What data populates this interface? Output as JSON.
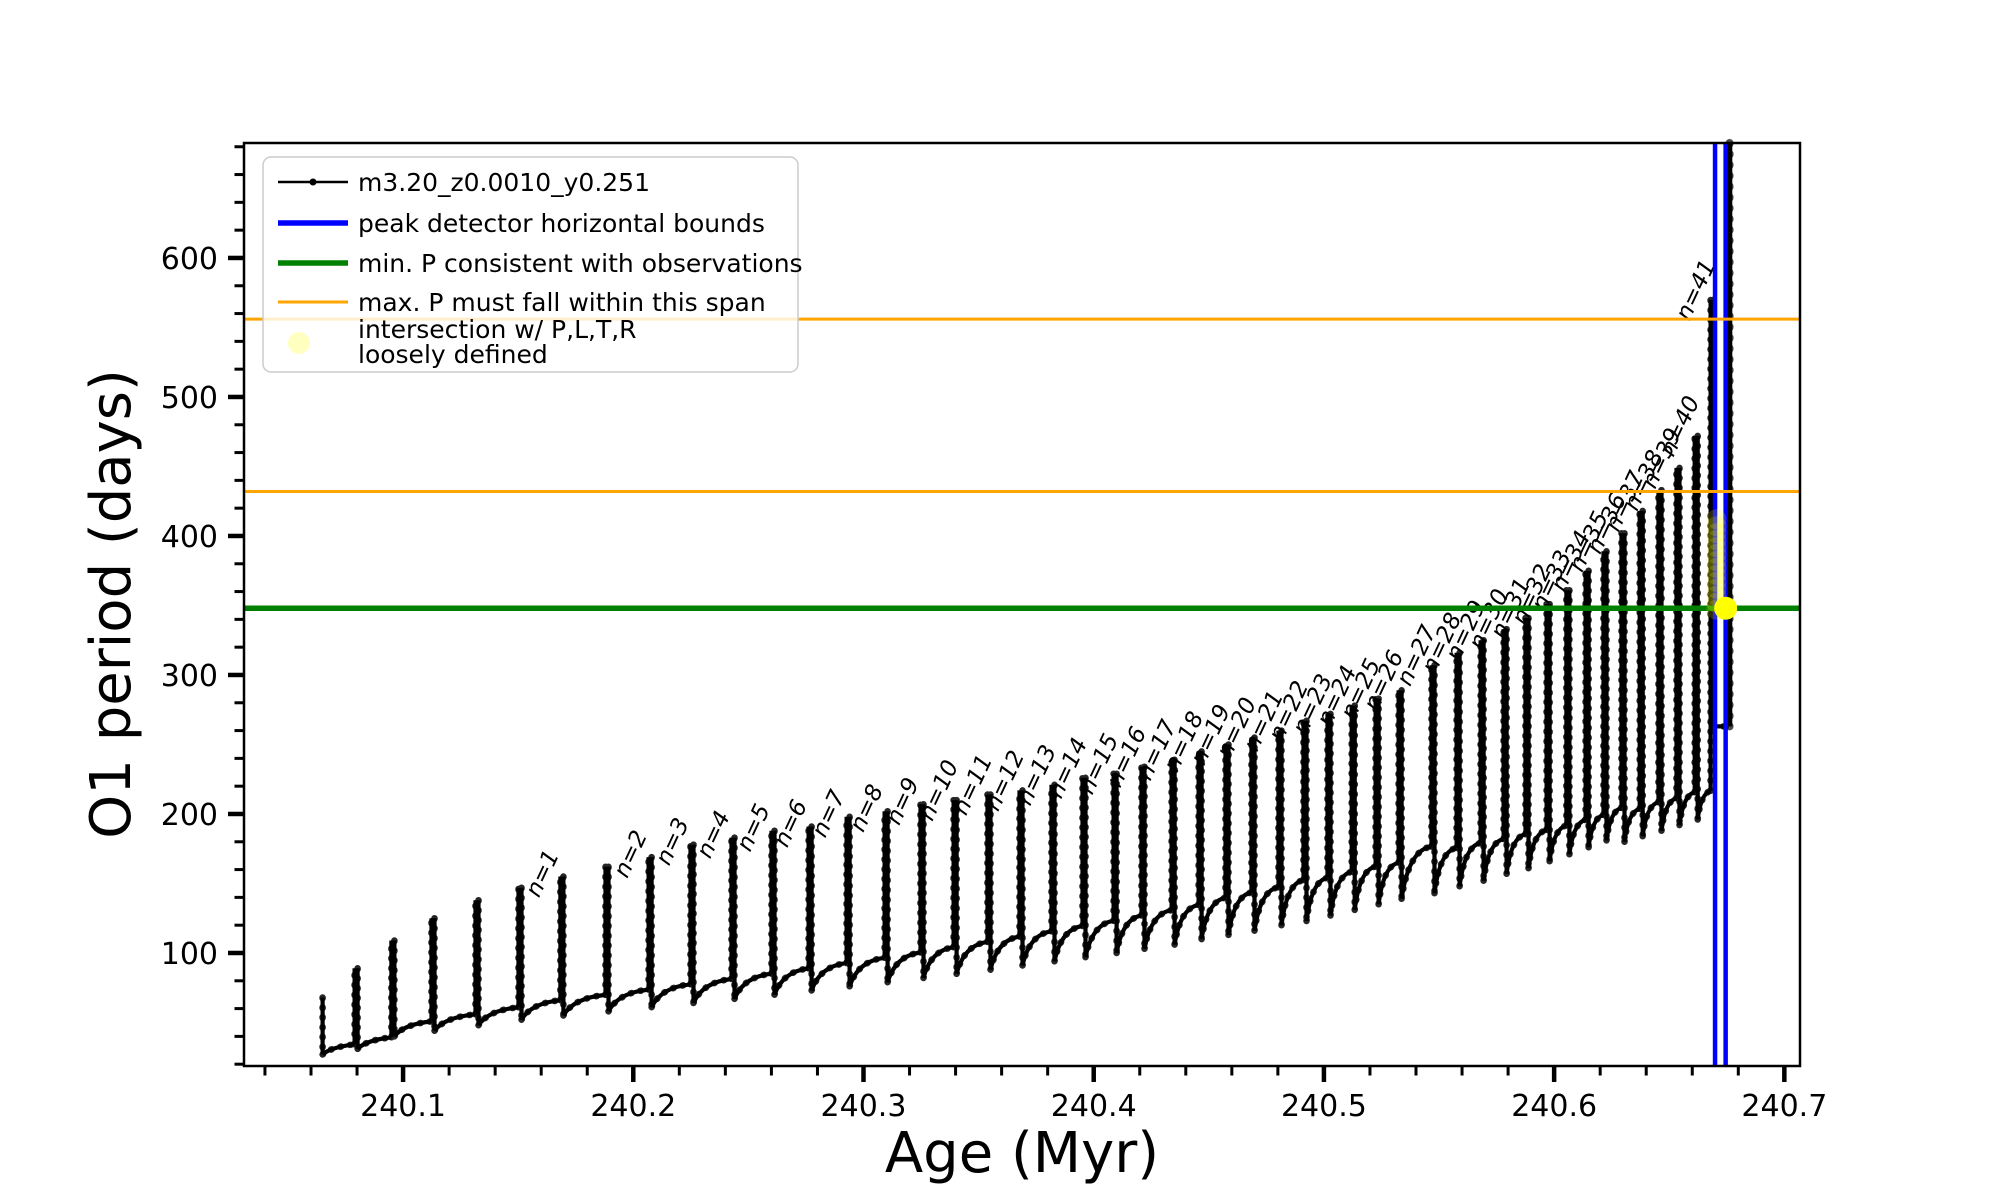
{
  "chart_data": {
    "type": "line",
    "title": "",
    "xlabel": "Age (Myr)",
    "ylabel": "O1 period (days)",
    "xlim": [
      240.0309,
      240.7068
    ],
    "ylim": [
      18.7,
      682.7
    ],
    "grid": false,
    "xticks": {
      "major": [
        240.1,
        240.2,
        240.3,
        240.4,
        240.5,
        240.6,
        240.7
      ],
      "labels": [
        "240.1",
        "240.2",
        "240.3",
        "240.4",
        "240.5",
        "240.6",
        "240.7"
      ],
      "minor_step": 0.02
    },
    "yticks": {
      "major": [
        100,
        200,
        300,
        400,
        500,
        600
      ],
      "labels": [
        "100",
        "200",
        "300",
        "400",
        "500",
        "600"
      ],
      "minor_step": 20
    },
    "colors": {
      "series": "#000000",
      "peak_bounds": "#0000ff",
      "min_p": "#008000",
      "max_p_span": "#ffa500",
      "intersection": "#ffff00",
      "intersection_pale": "rgba(255,255,0,0.18)",
      "legend_border": "#cccccc"
    },
    "legend": [
      {
        "swatch": "line-dot",
        "color": "#000000",
        "label": "m3.20_z0.0010_y0.251"
      },
      {
        "swatch": "line-thick",
        "color": "#0000ff",
        "label": "peak detector horizontal bounds"
      },
      {
        "swatch": "line-thick",
        "color": "#008000",
        "label": "min. P consistent with observations"
      },
      {
        "swatch": "line-thin",
        "color": "#ffa500",
        "label": "max. P must fall within this span"
      },
      {
        "swatch": "dot",
        "color": "rgba(255,255,0,0.25)",
        "label": "intersection w/ P,L,T,R",
        "label2": "loosely defined"
      }
    ],
    "series_name": "m3.20_z0.0010_y0.251",
    "hlines": [
      {
        "name": "max-p-upper",
        "y": 556,
        "color": "#ffa500",
        "lw": 3
      },
      {
        "name": "max-p-lower",
        "y": 432,
        "color": "#ffa500",
        "lw": 3
      },
      {
        "name": "min-p",
        "y": 348,
        "color": "#008000",
        "lw": 5.5
      }
    ],
    "vlines": [
      {
        "name": "peak-bound-left",
        "x": 240.6699,
        "color": "#0000ff",
        "lw": 4.5
      },
      {
        "name": "peak-bound-right",
        "x": 240.6745,
        "color": "#0000ff",
        "lw": 4.5
      }
    ],
    "final_rise": {
      "x": 240.6762,
      "from": 263,
      "to": 682.7
    },
    "intersection_point": {
      "x": 240.6745,
      "y": 348
    },
    "intersection_candidates": {
      "x": 240.6705,
      "values": [
        347,
        352,
        357,
        362,
        367,
        372,
        377,
        382,
        387,
        392,
        397,
        402,
        407,
        412
      ]
    },
    "teeth": [
      {
        "x": 240.0644,
        "peak": 68,
        "under": 27,
        "label": null
      },
      {
        "x": 240.0796,
        "peak": 89,
        "under": 31,
        "label": null
      },
      {
        "x": 240.0956,
        "peak": 109,
        "under": 40,
        "label": null
      },
      {
        "x": 240.113,
        "peak": 125,
        "under": 44,
        "label": null
      },
      {
        "x": 240.1321,
        "peak": 138,
        "under": 48,
        "label": null
      },
      {
        "x": 240.1508,
        "peak": 147,
        "under": 52,
        "label": null
      },
      {
        "x": 240.169,
        "peak": 155,
        "under": 55,
        "label": "n=1"
      },
      {
        "x": 240.1886,
        "peak": 162,
        "under": 58,
        "label": null
      },
      {
        "x": 240.2073,
        "peak": 169,
        "under": 61,
        "label": "n=2"
      },
      {
        "x": 240.2255,
        "peak": 178,
        "under": 64,
        "label": "n=3"
      },
      {
        "x": 240.2433,
        "peak": 183,
        "under": 67,
        "label": "n=4"
      },
      {
        "x": 240.2607,
        "peak": 188,
        "under": 70,
        "label": "n=5"
      },
      {
        "x": 240.2768,
        "peak": 191,
        "under": 73,
        "label": "n=6"
      },
      {
        "x": 240.2933,
        "peak": 198,
        "under": 76,
        "label": "n=7"
      },
      {
        "x": 240.3098,
        "peak": 202,
        "under": 79,
        "label": "n=8"
      },
      {
        "x": 240.3254,
        "peak": 207,
        "under": 82,
        "label": "n=9"
      },
      {
        "x": 240.3398,
        "peak": 210,
        "under": 85,
        "label": "n=10"
      },
      {
        "x": 240.3545,
        "peak": 214,
        "under": 88,
        "label": "n=11"
      },
      {
        "x": 240.3684,
        "peak": 217,
        "under": 91,
        "label": "n=12"
      },
      {
        "x": 240.3823,
        "peak": 221,
        "under": 94,
        "label": "n=13"
      },
      {
        "x": 240.3958,
        "peak": 226,
        "under": 97,
        "label": "n=14"
      },
      {
        "x": 240.4093,
        "peak": 229,
        "under": 100,
        "label": "n=15"
      },
      {
        "x": 240.4214,
        "peak": 234,
        "under": 103,
        "label": "n=16"
      },
      {
        "x": 240.4345,
        "peak": 239,
        "under": 106,
        "label": "n=17"
      },
      {
        "x": 240.4462,
        "peak": 245,
        "under": 110,
        "label": "n=18"
      },
      {
        "x": 240.4579,
        "peak": 250,
        "under": 113,
        "label": "n=19"
      },
      {
        "x": 240.4692,
        "peak": 255,
        "under": 116,
        "label": "n=20"
      },
      {
        "x": 240.4809,
        "peak": 260,
        "under": 120,
        "label": "n=21"
      },
      {
        "x": 240.4918,
        "peak": 267,
        "under": 123,
        "label": "n=22"
      },
      {
        "x": 240.5022,
        "peak": 272,
        "under": 127,
        "label": "n=23"
      },
      {
        "x": 240.5127,
        "peak": 278,
        "under": 131,
        "label": "n=24"
      },
      {
        "x": 240.5231,
        "peak": 283,
        "under": 135,
        "label": "n=25"
      },
      {
        "x": 240.5331,
        "peak": 289,
        "under": 139,
        "label": "n=26"
      },
      {
        "x": 240.5474,
        "peak": 307,
        "under": 143,
        "label": "n=27"
      },
      {
        "x": 240.5583,
        "peak": 316,
        "under": 148,
        "label": "n=28"
      },
      {
        "x": 240.5687,
        "peak": 325,
        "under": 152,
        "label": "n=29"
      },
      {
        "x": 240.5787,
        "peak": 333,
        "under": 157,
        "label": "n=30"
      },
      {
        "x": 240.5882,
        "peak": 341,
        "under": 161,
        "label": "n=31"
      },
      {
        "x": 240.5974,
        "peak": 351,
        "under": 166,
        "label": "n=32"
      },
      {
        "x": 240.606,
        "peak": 361,
        "under": 171,
        "label": "n=33"
      },
      {
        "x": 240.6143,
        "peak": 375,
        "under": 176,
        "label": "n=34"
      },
      {
        "x": 240.6221,
        "peak": 389,
        "under": 181,
        "label": "n=35"
      },
      {
        "x": 240.6299,
        "peak": 402,
        "under": 180,
        "label": "n=36"
      },
      {
        "x": 240.6378,
        "peak": 418,
        "under": 184,
        "label": "n=37"
      },
      {
        "x": 240.646,
        "peak": 433,
        "under": 188,
        "label": "n=38"
      },
      {
        "x": 240.6538,
        "peak": 449,
        "under": 192,
        "label": "n=39"
      },
      {
        "x": 240.6617,
        "peak": 472,
        "under": 196,
        "label": "n=40"
      },
      {
        "x": 240.6686,
        "peak": 570,
        "under": 263,
        "label": "n=41"
      }
    ]
  }
}
